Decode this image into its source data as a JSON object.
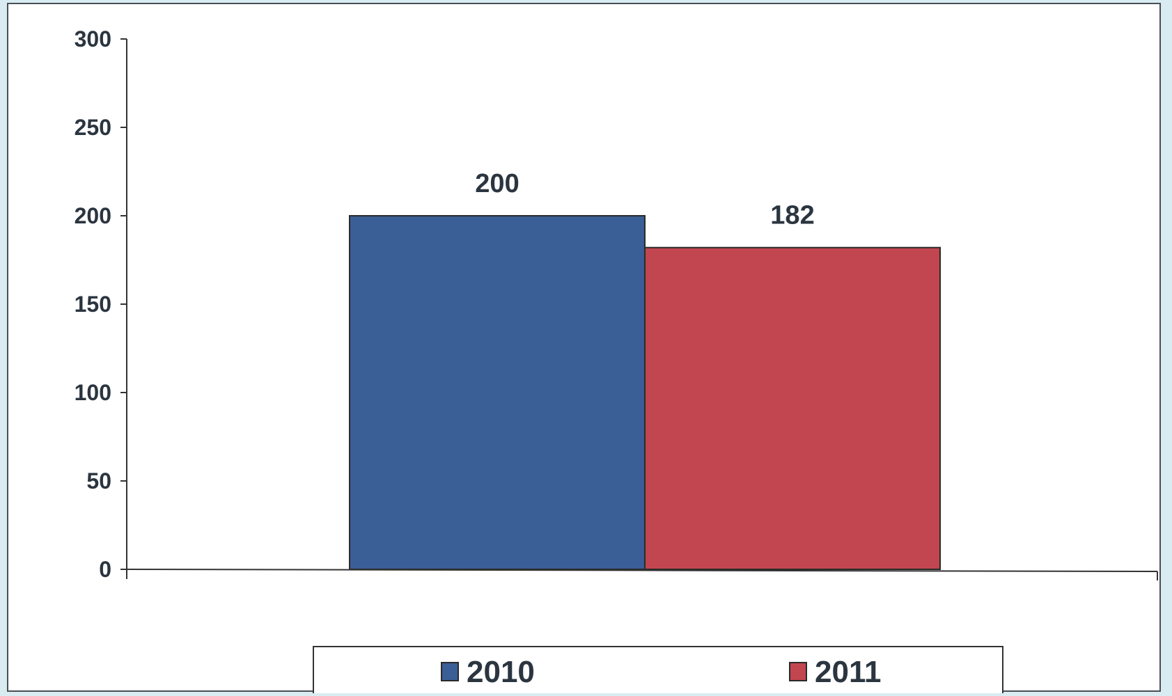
{
  "chart_data": {
    "type": "bar",
    "title": "",
    "xlabel": "",
    "ylabel": "",
    "ylim": [
      0,
      300
    ],
    "yticks": [
      0,
      50,
      100,
      150,
      200,
      250,
      300
    ],
    "grid": false,
    "legend_position": "bottom",
    "categories": [
      ""
    ],
    "series": [
      {
        "name": "2010",
        "values": [
          200
        ],
        "color": "#3a5e96"
      },
      {
        "name": "2011",
        "values": [
          182
        ],
        "color": "#c2464f"
      }
    ]
  }
}
